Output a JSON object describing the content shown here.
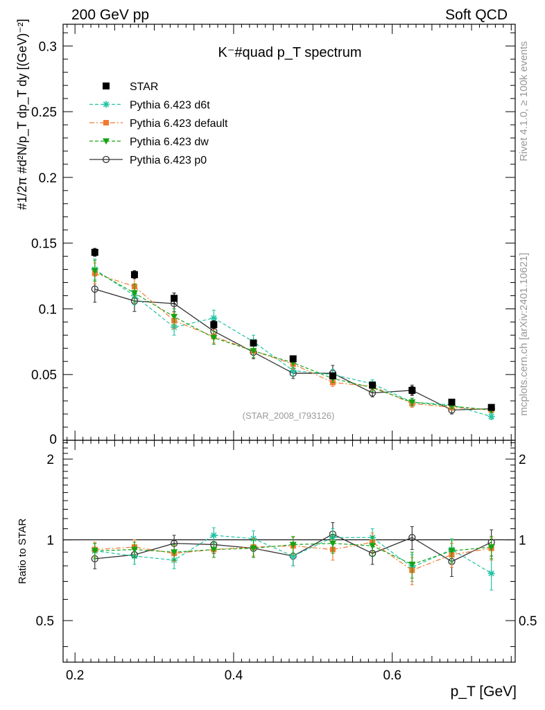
{
  "header": {
    "left": "200 GeV pp",
    "right": "Soft QCD"
  },
  "side_labels": {
    "rivet": "Rivet 4.1.0, ≥ 100k events",
    "mcplots": "mcplots.cern.ch [arXiv:2401.10621]"
  },
  "colors": {
    "star": "#000000",
    "d6t": "#1fc3a2",
    "default": "#f07a2e",
    "dw": "#16a316",
    "p0": "#333333"
  },
  "chart_data": [
    {
      "type": "scatter",
      "title": "K⁻#quad p_T spectrum",
      "analysis_id": "(STAR_2008_I793126)",
      "xlim": [
        0.185,
        0.755
      ],
      "ylim": [
        0,
        0.3165
      ],
      "xticks": [
        0.2,
        0.4,
        0.6
      ],
      "yticks": [
        0.05,
        0.1,
        0.15,
        0.2,
        0.25,
        0.3
      ],
      "ytick_labels": [
        "0.05",
        "0.1",
        "0.15",
        "0.2",
        "0.25",
        "0.3"
      ],
      "zero_label": "0",
      "ylabel": "#1/2π #d²N/p_T dp_T dy [(GeV)⁻²]",
      "x": [
        0.225,
        0.275,
        0.325,
        0.375,
        0.425,
        0.475,
        0.525,
        0.575,
        0.625,
        0.675,
        0.725
      ],
      "legend": [
        {
          "key": "star",
          "label": "STAR"
        },
        {
          "key": "d6t",
          "label": "Pythia 6.423 d6t"
        },
        {
          "key": "default",
          "label": "Pythia 6.423 default"
        },
        {
          "key": "dw",
          "label": "Pythia 6.423 dw"
        },
        {
          "key": "p0",
          "label": "Pythia 6.423 p0"
        }
      ],
      "series": [
        {
          "key": "star",
          "name": "STAR",
          "values": [
            0.143,
            0.126,
            0.108,
            0.088,
            0.074,
            0.062,
            0.049,
            0.042,
            0.038,
            0.029,
            0.025
          ],
          "errors": [
            0.003,
            0.003,
            0.004,
            0.003,
            0.002,
            0.002,
            0.002,
            0.002,
            0.003,
            0.002,
            0.002
          ]
        },
        {
          "key": "d6t",
          "name": "Pythia 6.423 d6t",
          "values": [
            0.13,
            0.11,
            0.086,
            0.093,
            0.075,
            0.053,
            0.05,
            0.043,
            0.029,
            0.027,
            0.018
          ],
          "errors": [
            0.008,
            0.007,
            0.006,
            0.006,
            0.005,
            0.004,
            0.004,
            0.003,
            0.003,
            0.002,
            0.002
          ]
        },
        {
          "key": "default",
          "name": "Pythia 6.423 default",
          "values": [
            0.127,
            0.117,
            0.091,
            0.079,
            0.068,
            0.058,
            0.044,
            0.041,
            0.028,
            0.025,
            0.023
          ],
          "errors": [
            0.008,
            0.007,
            0.006,
            0.005,
            0.005,
            0.004,
            0.003,
            0.003,
            0.003,
            0.002,
            0.002
          ]
        },
        {
          "key": "dw",
          "name": "Pythia 6.423 dw",
          "values": [
            0.129,
            0.112,
            0.094,
            0.078,
            0.068,
            0.059,
            0.047,
            0.04,
            0.029,
            0.026,
            0.023
          ],
          "errors": [
            0.008,
            0.007,
            0.006,
            0.005,
            0.005,
            0.004,
            0.003,
            0.003,
            0.003,
            0.002,
            0.002
          ]
        },
        {
          "key": "p0",
          "name": "Pythia 6.423 p0",
          "values": [
            0.115,
            0.106,
            0.104,
            0.083,
            0.067,
            0.051,
            0.051,
            0.036,
            0.038,
            0.023,
            0.024
          ],
          "errors": [
            0.01,
            0.008,
            0.006,
            0.005,
            0.005,
            0.004,
            0.006,
            0.003,
            0.004,
            0.003,
            0.003
          ]
        }
      ]
    },
    {
      "type": "scatter",
      "title": "",
      "ylabel": "Ratio to STAR",
      "xlabel": "p_T [GeV]",
      "xlim": [
        0.185,
        0.755
      ],
      "ylim": [
        0.35,
        2.35
      ],
      "xticks": [
        0.2,
        0.4,
        0.6
      ],
      "xtick_labels": [
        "0.2",
        "0.4",
        "0.6"
      ],
      "yticks": [
        0.5,
        1,
        2
      ],
      "ytick_labels": [
        "0.5",
        "1",
        "2"
      ],
      "reference_line": 1,
      "x": [
        0.225,
        0.275,
        0.325,
        0.375,
        0.425,
        0.475,
        0.525,
        0.575,
        0.625,
        0.675,
        0.725
      ],
      "series": [
        {
          "key": "d6t",
          "name": "Pythia 6.423 d6t",
          "values": [
            0.91,
            0.87,
            0.84,
            1.04,
            1.01,
            0.87,
            1.02,
            1.02,
            0.79,
            0.92,
            0.75
          ],
          "errors": [
            0.06,
            0.06,
            0.06,
            0.07,
            0.07,
            0.07,
            0.08,
            0.08,
            0.09,
            0.09,
            0.1
          ]
        },
        {
          "key": "default",
          "name": "Pythia 6.423 default",
          "values": [
            0.92,
            0.94,
            0.89,
            0.92,
            0.94,
            0.95,
            0.92,
            0.98,
            0.77,
            0.88,
            0.93
          ],
          "errors": [
            0.06,
            0.06,
            0.06,
            0.06,
            0.07,
            0.07,
            0.08,
            0.08,
            0.09,
            0.09,
            0.09
          ]
        },
        {
          "key": "dw",
          "name": "Pythia 6.423 dw",
          "values": [
            0.91,
            0.92,
            0.9,
            0.92,
            0.93,
            0.96,
            0.97,
            0.95,
            0.81,
            0.91,
            0.94
          ],
          "errors": [
            0.06,
            0.06,
            0.06,
            0.06,
            0.07,
            0.07,
            0.08,
            0.08,
            0.09,
            0.09,
            0.09
          ]
        },
        {
          "key": "p0",
          "name": "Pythia 6.423 p0",
          "values": [
            0.85,
            0.88,
            0.97,
            0.96,
            0.93,
            0.87,
            1.05,
            0.89,
            1.02,
            0.83,
            0.98
          ],
          "errors": [
            0.07,
            0.07,
            0.07,
            0.07,
            0.07,
            0.07,
            0.11,
            0.08,
            0.1,
            0.1,
            0.11
          ]
        }
      ]
    }
  ]
}
